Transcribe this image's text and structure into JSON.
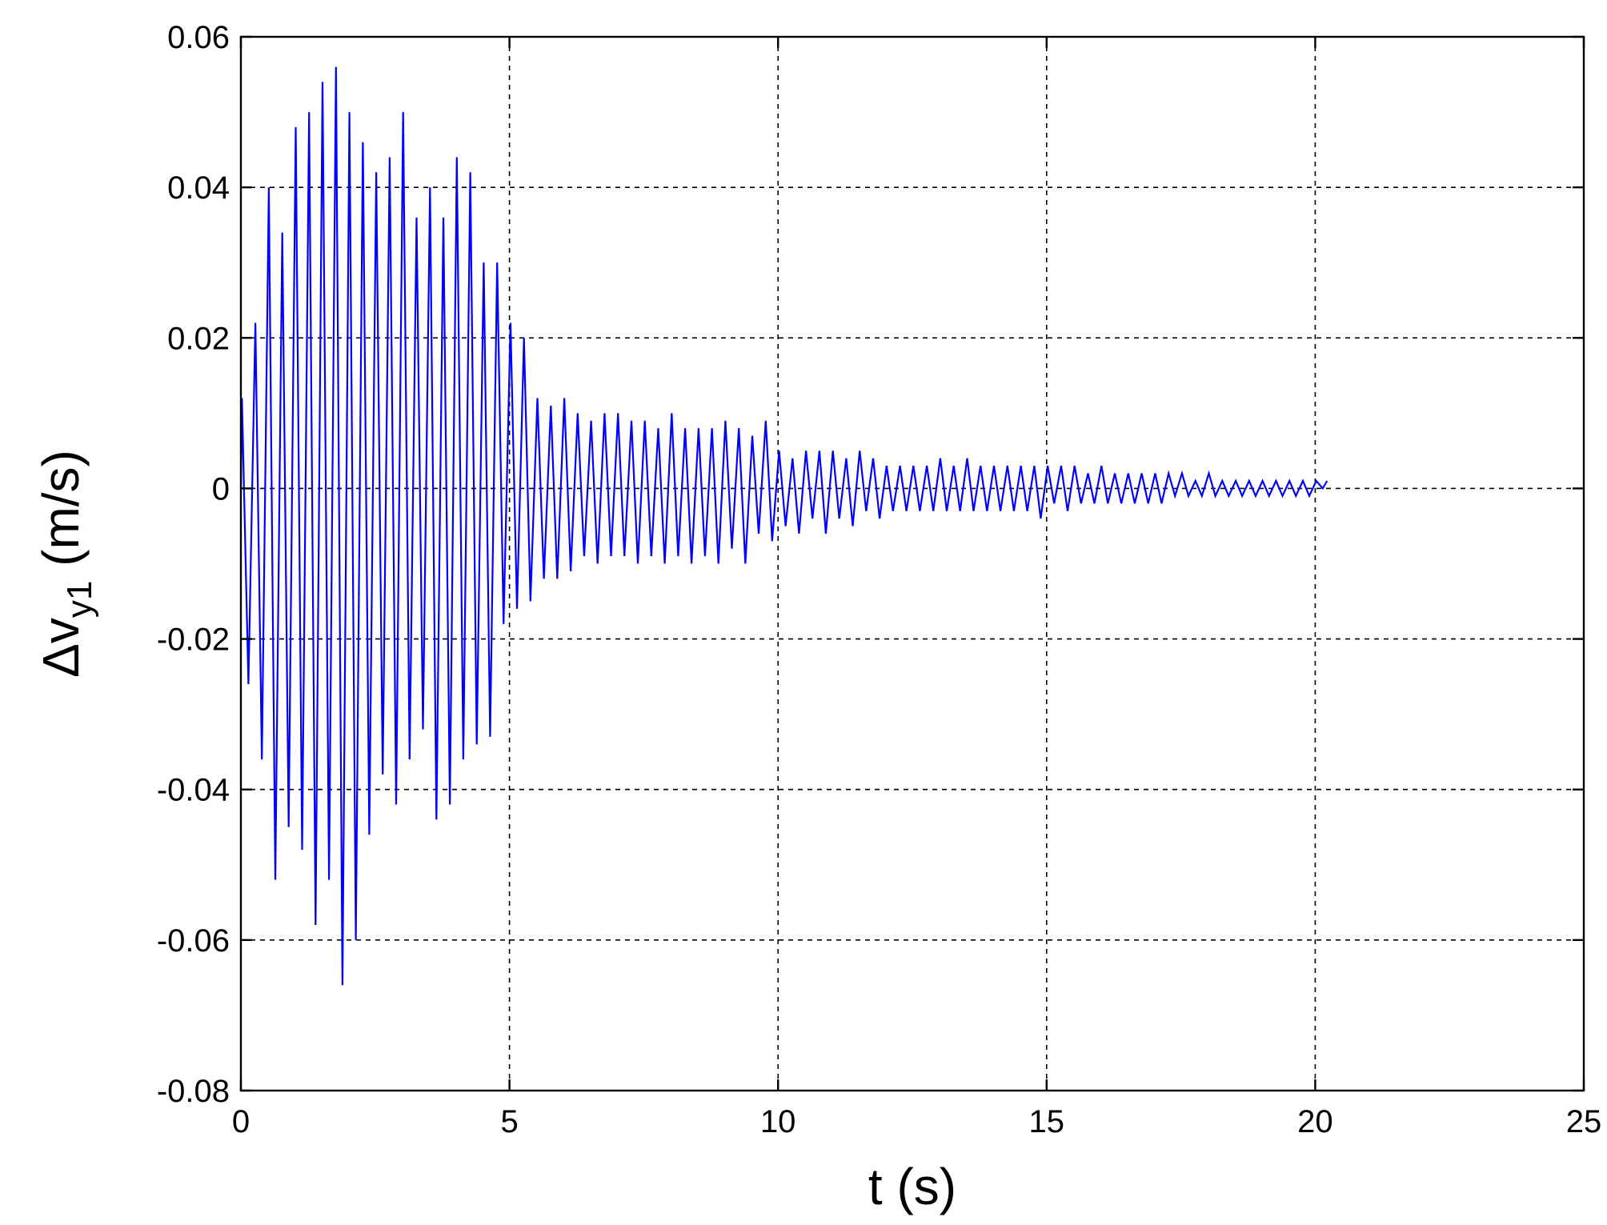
{
  "chart_data": {
    "type": "line",
    "title": "",
    "xlabel": "t (s)",
    "ylabel": {
      "prefix": "Δv",
      "subscript": "y1",
      "suffix": " (m/s)"
    },
    "xlim": [
      0,
      25
    ],
    "ylim": [
      -0.08,
      0.06
    ],
    "xticks": [
      0,
      5,
      10,
      15,
      20,
      25
    ],
    "yticks": [
      0.06,
      0.04,
      0.02,
      0,
      -0.02,
      -0.04,
      -0.06,
      -0.08
    ],
    "xtick_labels": [
      "0",
      "5",
      "10",
      "15",
      "20",
      "25"
    ],
    "ytick_labels": [
      "0.06",
      "0.04",
      "0.02",
      "0",
      "-0.02",
      "-0.04",
      "-0.06",
      "-0.08"
    ],
    "grid": true,
    "line_color": "#0000ff",
    "series": [
      {
        "name": "",
        "peaks": {
          "t": [
            0.1,
            0.35,
            0.6,
            0.85,
            1.1,
            1.35,
            1.6,
            1.85,
            2.1,
            2.35,
            2.6,
            2.85,
            3.1,
            3.35,
            3.6,
            3.85,
            4.1,
            4.35,
            4.6,
            4.85,
            5.1,
            5.35,
            5.6,
            5.85,
            6.1,
            6.35,
            6.6,
            6.85,
            7.1,
            7.35,
            7.6,
            7.85,
            8.1,
            8.35,
            8.6,
            8.85,
            9.1,
            9.35,
            9.6,
            9.85,
            10.1,
            10.35,
            10.6,
            10.85,
            11.1,
            11.35,
            11.6,
            11.85,
            12.1,
            12.35,
            12.6,
            12.85,
            13.1,
            13.35,
            13.6,
            13.85,
            14.1,
            14.35,
            14.6,
            14.85,
            15.1,
            15.35,
            15.6,
            15.85,
            16.1,
            16.35,
            16.6,
            16.85,
            17.1,
            17.35,
            17.6,
            17.85,
            18.1,
            18.35,
            18.6,
            18.85,
            19.1,
            19.35,
            19.6,
            19.85,
            20.1
          ],
          "high": [
            0.012,
            0.022,
            0.04,
            0.034,
            0.048,
            0.05,
            0.054,
            0.056,
            0.05,
            0.046,
            0.042,
            0.044,
            0.05,
            0.036,
            0.04,
            0.036,
            0.044,
            0.042,
            0.03,
            0.03,
            0.022,
            0.02,
            0.012,
            0.011,
            0.012,
            0.01,
            0.009,
            0.01,
            0.01,
            0.009,
            0.009,
            0.008,
            0.01,
            0.008,
            0.008,
            0.008,
            0.009,
            0.008,
            0.007,
            0.009,
            0.005,
            0.004,
            0.005,
            0.005,
            0.005,
            0.004,
            0.005,
            0.004,
            0.003,
            0.003,
            0.003,
            0.003,
            0.004,
            0.003,
            0.004,
            0.003,
            0.003,
            0.003,
            0.003,
            0.003,
            0.003,
            0.003,
            0.003,
            0.002,
            0.003,
            0.002,
            0.002,
            0.002,
            0.002,
            0.002,
            0.002,
            0.001,
            0.002,
            0.001,
            0.001,
            0.001,
            0.001,
            0.001,
            0.001,
            0.001,
            0.001
          ],
          "low": [
            -0.026,
            -0.036,
            -0.052,
            -0.045,
            -0.048,
            -0.058,
            -0.052,
            -0.066,
            -0.06,
            -0.046,
            -0.038,
            -0.042,
            -0.036,
            -0.032,
            -0.044,
            -0.042,
            -0.036,
            -0.034,
            -0.033,
            -0.018,
            -0.016,
            -0.015,
            -0.012,
            -0.012,
            -0.011,
            -0.009,
            -0.01,
            -0.009,
            -0.009,
            -0.01,
            -0.009,
            -0.01,
            -0.009,
            -0.01,
            -0.009,
            -0.01,
            -0.008,
            -0.01,
            -0.006,
            -0.007,
            -0.005,
            -0.006,
            -0.004,
            -0.006,
            -0.004,
            -0.005,
            -0.003,
            -0.004,
            -0.003,
            -0.003,
            -0.003,
            -0.003,
            -0.003,
            -0.003,
            -0.003,
            -0.003,
            -0.003,
            -0.003,
            -0.003,
            -0.004,
            -0.002,
            -0.003,
            -0.002,
            -0.002,
            -0.002,
            -0.002,
            -0.002,
            -0.002,
            -0.002,
            -0.001,
            -0.001,
            -0.001,
            -0.001,
            -0.001,
            -0.001,
            -0.001,
            -0.001,
            -0.001,
            -0.001,
            -0.001,
            0.0
          ]
        }
      }
    ]
  }
}
